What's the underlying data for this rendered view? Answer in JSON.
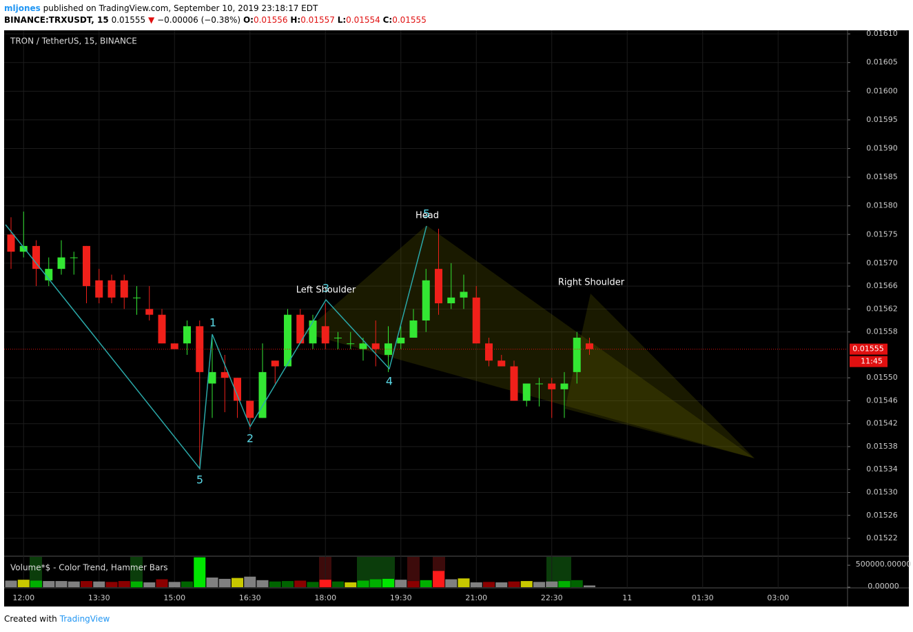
{
  "header": {
    "user": "mljones",
    "published": "published on TradingView.com, September 10, 2019 23:18:17 EDT",
    "symbol": "BINANCE:TRXUSDT, 15",
    "last": "0.01555",
    "arrow": "▼",
    "change": "−0.00006 (−0.38%)",
    "ohlc_labels": [
      "O:",
      "H:",
      "L:",
      "C:"
    ],
    "ohlc_values": [
      "0.01556",
      "0.01557",
      "0.01554",
      "0.01555"
    ]
  },
  "footer": {
    "created": "Created with",
    "brand": "TradingView"
  },
  "chart_data": {
    "type": "candlestick",
    "title": "TRON / TetherUS, 15, BINANCE",
    "categories": [
      null,
      "12:00",
      null,
      null,
      null,
      null,
      null,
      "13:30",
      null,
      null,
      null,
      null,
      null,
      "15:00",
      null,
      null,
      null,
      null,
      null,
      "16:30",
      null,
      null,
      null,
      null,
      null,
      "18:00",
      null,
      null,
      null,
      null,
      null,
      "19:30",
      null,
      null,
      null,
      null,
      null,
      "21:00",
      null,
      null,
      null,
      null,
      null,
      "22:30",
      null,
      null,
      null
    ],
    "future_ticks": [
      "11",
      "01:30",
      "03:00"
    ],
    "open": [
      0.01575,
      0.01572,
      0.01573,
      0.01567,
      0.01569,
      0.01571,
      0.01573,
      0.01567,
      0.01567,
      0.01567,
      0.01564,
      0.01562,
      0.01561,
      0.01556,
      0.01556,
      0.01559,
      0.01549,
      0.01551,
      0.0155,
      0.01546,
      0.01543,
      0.01553,
      0.01552,
      0.01561,
      0.01556,
      0.01559,
      0.01557,
      0.01556,
      0.01555,
      0.01556,
      0.01554,
      0.01556,
      0.01557,
      0.0156,
      0.01569,
      0.01563,
      0.01564,
      0.01564,
      0.01556,
      0.01553,
      0.01552,
      0.01546,
      0.01549,
      0.01549,
      0.01548,
      0.01551,
      0.01556
    ],
    "high": [
      0.01578,
      0.01579,
      0.01574,
      0.01571,
      0.01574,
      0.01572,
      0.01573,
      0.01569,
      0.01568,
      0.01568,
      0.01566,
      0.01566,
      0.01562,
      0.01556,
      0.0156,
      0.0156,
      0.01557,
      0.01554,
      0.0155,
      0.01546,
      0.01556,
      0.01553,
      0.01562,
      0.01562,
      0.01561,
      0.01563,
      0.01558,
      0.01558,
      0.01557,
      0.0156,
      0.01559,
      0.01559,
      0.01562,
      0.01569,
      0.01576,
      0.0157,
      0.01568,
      0.01566,
      0.01557,
      0.01554,
      0.01553,
      0.01549,
      0.0155,
      0.0155,
      0.01551,
      0.01558,
      0.01557
    ],
    "low": [
      0.01569,
      0.01571,
      0.01566,
      0.01566,
      0.01568,
      0.01568,
      0.01563,
      0.01563,
      0.01563,
      0.01562,
      0.01561,
      0.0156,
      0.01556,
      0.01555,
      0.01554,
      0.01534,
      0.01543,
      0.01544,
      0.01543,
      0.01541,
      0.01543,
      0.01549,
      0.01552,
      0.01556,
      0.01555,
      0.01555,
      0.01555,
      0.01555,
      0.01553,
      0.01552,
      0.01551,
      0.01555,
      0.01557,
      0.01558,
      0.01561,
      0.01562,
      0.01562,
      0.01556,
      0.01552,
      0.01552,
      0.01546,
      0.01545,
      0.01545,
      0.01543,
      0.01543,
      0.01549,
      0.01554
    ],
    "close": [
      0.01572,
      0.01573,
      0.01569,
      0.01569,
      0.01571,
      0.01571,
      0.01566,
      0.01564,
      0.01564,
      0.01564,
      0.01564,
      0.01561,
      0.01556,
      0.01555,
      0.01559,
      0.01551,
      0.01551,
      0.0155,
      0.01546,
      0.01543,
      0.01551,
      0.01552,
      0.01561,
      0.01556,
      0.0156,
      0.01556,
      0.01557,
      0.01556,
      0.01556,
      0.01555,
      0.01556,
      0.01557,
      0.0156,
      0.01567,
      0.01563,
      0.01564,
      0.01565,
      0.01556,
      0.01553,
      0.01552,
      0.01546,
      0.01549,
      0.01549,
      0.01548,
      0.01549,
      0.01557,
      0.01555
    ],
    "up_color": "#33e633",
    "down_color": "#f0201a",
    "ylim": [
      0.01519,
      0.016105
    ],
    "yticks": [
      {
        "value": 0.0161,
        "label": "0.01610"
      },
      0.01605,
      {
        "value": 0.016,
        "label": "0.01600"
      },
      0.01595,
      {
        "value": 0.0159,
        "label": "0.01590"
      },
      0.01585,
      {
        "value": 0.0158,
        "label": "0.01580"
      },
      0.01575,
      {
        "value": 0.0157,
        "label": "0.01570"
      },
      0.01566,
      0.01562,
      0.01558,
      {
        "value": 0.0155,
        "label": "0.01550"
      },
      0.01546,
      0.01542,
      0.01538,
      0.01534,
      {
        "value": 0.0153,
        "label": "0.01530"
      },
      0.01526,
      0.01522
    ],
    "last_price": 0.01555,
    "countdown": "11:45",
    "annotations": [
      "Left Shoulder",
      "Head",
      "Right Shoulder"
    ],
    "wave_labels": [
      "5",
      "1",
      "2",
      "3",
      "4",
      "5"
    ],
    "volume": {
      "title": "Volume*$ - Color Trend, Hammer Bars",
      "values": [
        150000,
        170000,
        150000,
        140000,
        140000,
        130000,
        140000,
        130000,
        120000,
        140000,
        130000,
        110000,
        180000,
        120000,
        130000,
        680000,
        220000,
        190000,
        210000,
        240000,
        160000,
        130000,
        140000,
        150000,
        120000,
        170000,
        130000,
        110000,
        150000,
        180000,
        190000,
        170000,
        140000,
        160000,
        370000,
        180000,
        200000,
        110000,
        120000,
        110000,
        130000,
        140000,
        120000,
        130000,
        140000,
        160000,
        40000
      ],
      "colors": [
        "#808080",
        "#c8c800",
        "#00b000",
        "#808080",
        "#808080",
        "#808080",
        "#8b0000",
        "#808080",
        "#8b0000",
        "#8b0000",
        "#00b000",
        "#808080",
        "#8b0000",
        "#808080",
        "#006400",
        "#00e600",
        "#808080",
        "#808080",
        "#c8c800",
        "#808080",
        "#808080",
        "#006400",
        "#006400",
        "#8b0000",
        "#006400",
        "#ff1a1a",
        "#006400",
        "#c8c800",
        "#00b000",
        "#00b000",
        "#00e600",
        "#808080",
        "#8b0000",
        "#00b000",
        "#ff1a1a",
        "#808080",
        "#c8c800",
        "#808080",
        "#8b0000",
        "#808080",
        "#8b0000",
        "#c8c800",
        "#808080",
        "#808080",
        "#00b000",
        "#006400",
        "#808080"
      ],
      "ylim": [
        0,
        690000
      ],
      "yticks": [
        {
          "value": 500000,
          "label": "500000.00000"
        },
        {
          "value": 0,
          "label": "0.00000"
        }
      ]
    }
  }
}
